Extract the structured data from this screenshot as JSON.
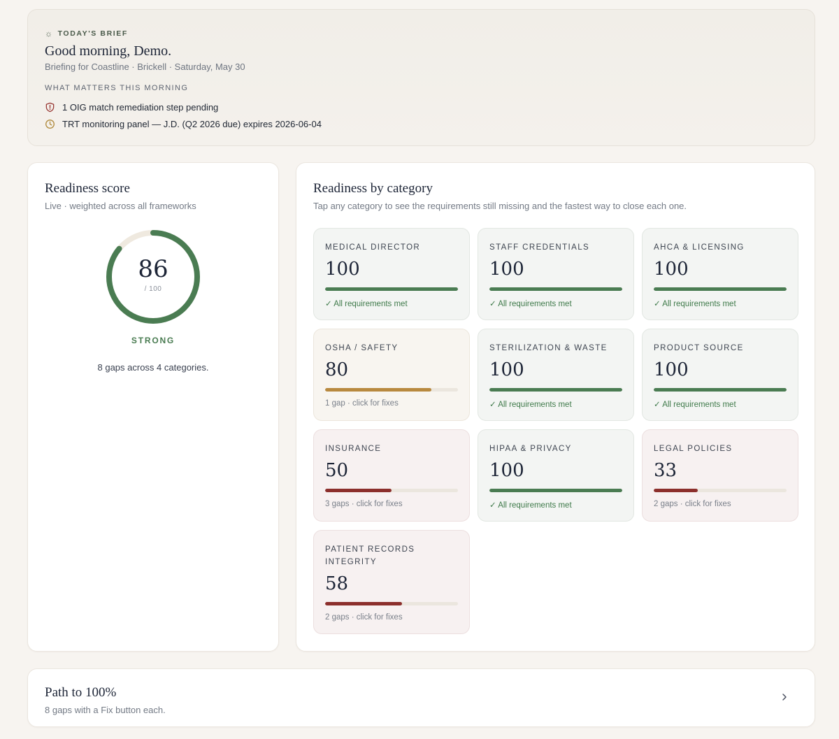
{
  "brief": {
    "eyebrow": "TODAY'S BRIEF",
    "greeting": "Good morning, Demo.",
    "subtitle": "Briefing for Coastline · Brickell · Saturday, May 30",
    "section_label": "WHAT MATTERS THIS MORNING",
    "items": [
      {
        "icon": "shield-alert-icon",
        "text": "1 OIG match remediation step pending",
        "color": "#9a3a36"
      },
      {
        "icon": "clock-icon",
        "text": "TRT monitoring panel — J.D. (Q2 2026 due) expires 2026-06-04",
        "color": "#b08a3e"
      }
    ]
  },
  "score": {
    "title": "Readiness score",
    "subtitle": "Live · weighted across all frameworks",
    "value": "86",
    "denominator": "/ 100",
    "percent": 86,
    "status": "STRONG",
    "summary": "8 gaps across 4 categories."
  },
  "categories": {
    "title": "Readiness by category",
    "subtitle": "Tap any category to see the requirements still missing and the fastest way to close each one.",
    "items": [
      {
        "name": "Medical Director",
        "value": "100",
        "percent": 100,
        "state": "good",
        "note": "✓ All requirements met"
      },
      {
        "name": "Staff Credentials",
        "value": "100",
        "percent": 100,
        "state": "good",
        "note": "✓ All requirements met"
      },
      {
        "name": "AHCA & Licensing",
        "value": "100",
        "percent": 100,
        "state": "good",
        "note": "✓ All requirements met"
      },
      {
        "name": "OSHA / Safety",
        "value": "80",
        "percent": 80,
        "state": "warn",
        "note": "1 gap · click for fixes"
      },
      {
        "name": "Sterilization & Waste",
        "value": "100",
        "percent": 100,
        "state": "good",
        "note": "✓ All requirements met"
      },
      {
        "name": "Product Source",
        "value": "100",
        "percent": 100,
        "state": "good",
        "note": "✓ All requirements met"
      },
      {
        "name": "Insurance",
        "value": "50",
        "percent": 50,
        "state": "bad",
        "note": "3 gaps · click for fixes"
      },
      {
        "name": "HIPAA & Privacy",
        "value": "100",
        "percent": 100,
        "state": "good",
        "note": "✓ All requirements met"
      },
      {
        "name": "Legal Policies",
        "value": "33",
        "percent": 33,
        "state": "bad",
        "note": "2 gaps · click for fixes"
      },
      {
        "name": "Patient Records Integrity",
        "value": "58",
        "percent": 58,
        "state": "bad",
        "note": "2 gaps · click for fixes"
      }
    ]
  },
  "path": {
    "title": "Path to 100%",
    "subtitle": "8 gaps with a Fix button each."
  },
  "colors": {
    "good": "#4a7c52",
    "warn": "#b8893f",
    "bad": "#8c2f2c",
    "ring_track": "#efe9df"
  }
}
